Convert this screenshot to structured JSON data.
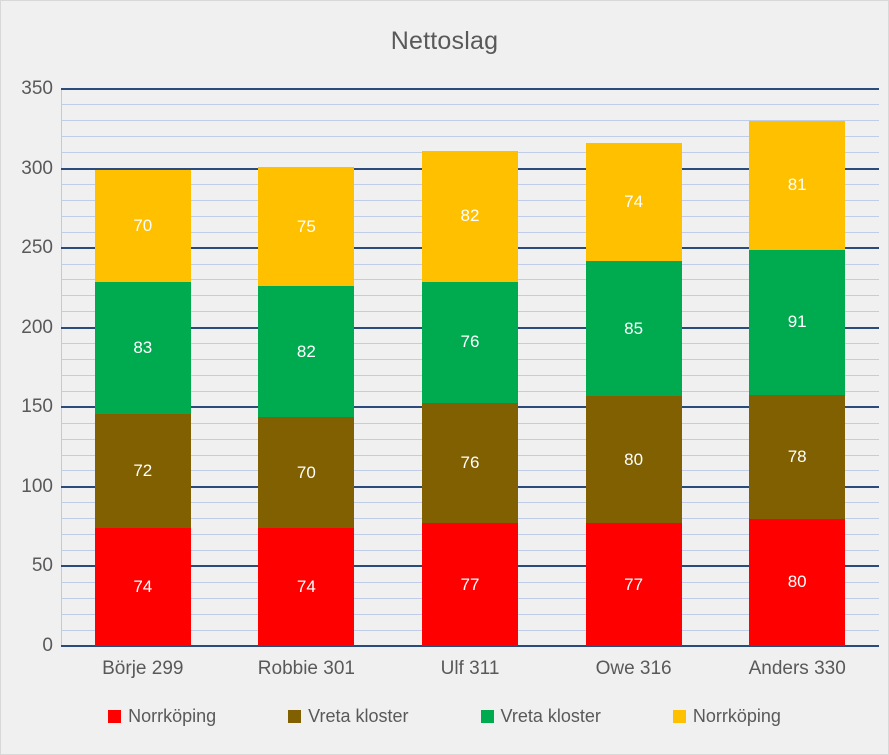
{
  "chart_data": {
    "type": "bar",
    "stacked": true,
    "title": "Nettoslag",
    "categories": [
      "Börje 299",
      "Robbie 301",
      "Ulf 311",
      "Owe 316",
      "Anders 330"
    ],
    "series": [
      {
        "name": "Norrköping",
        "color": "#ff0000",
        "values": [
          74,
          74,
          77,
          77,
          80
        ]
      },
      {
        "name": "Vreta kloster",
        "color": "#806000",
        "values": [
          72,
          70,
          76,
          80,
          78
        ]
      },
      {
        "name": "Vreta kloster",
        "color": "#00ab50",
        "values": [
          83,
          82,
          76,
          85,
          91
        ]
      },
      {
        "name": "Norrköping",
        "color": "#ffc000",
        "values": [
          70,
          75,
          82,
          74,
          81
        ]
      }
    ],
    "totals": [
      299,
      301,
      311,
      316,
      330
    ],
    "ylim": [
      0,
      350
    ],
    "y_ticks": [
      0,
      50,
      100,
      150,
      200,
      250,
      300,
      350
    ],
    "y_major_step": 50,
    "y_minor_step": 10,
    "grid": {
      "major": true,
      "minor": true
    },
    "legend_position": "bottom",
    "data_labels": "inside-center-white"
  },
  "style": {
    "background": "#f0f0f1",
    "border": "#d8d8d8",
    "text_color": "#595959",
    "grid_major_color": "#2b4b7d",
    "grid_minor_color": "#bfcde8",
    "axis_line_color": "#c9c9c9",
    "bar_label_color": "#ffffff"
  }
}
